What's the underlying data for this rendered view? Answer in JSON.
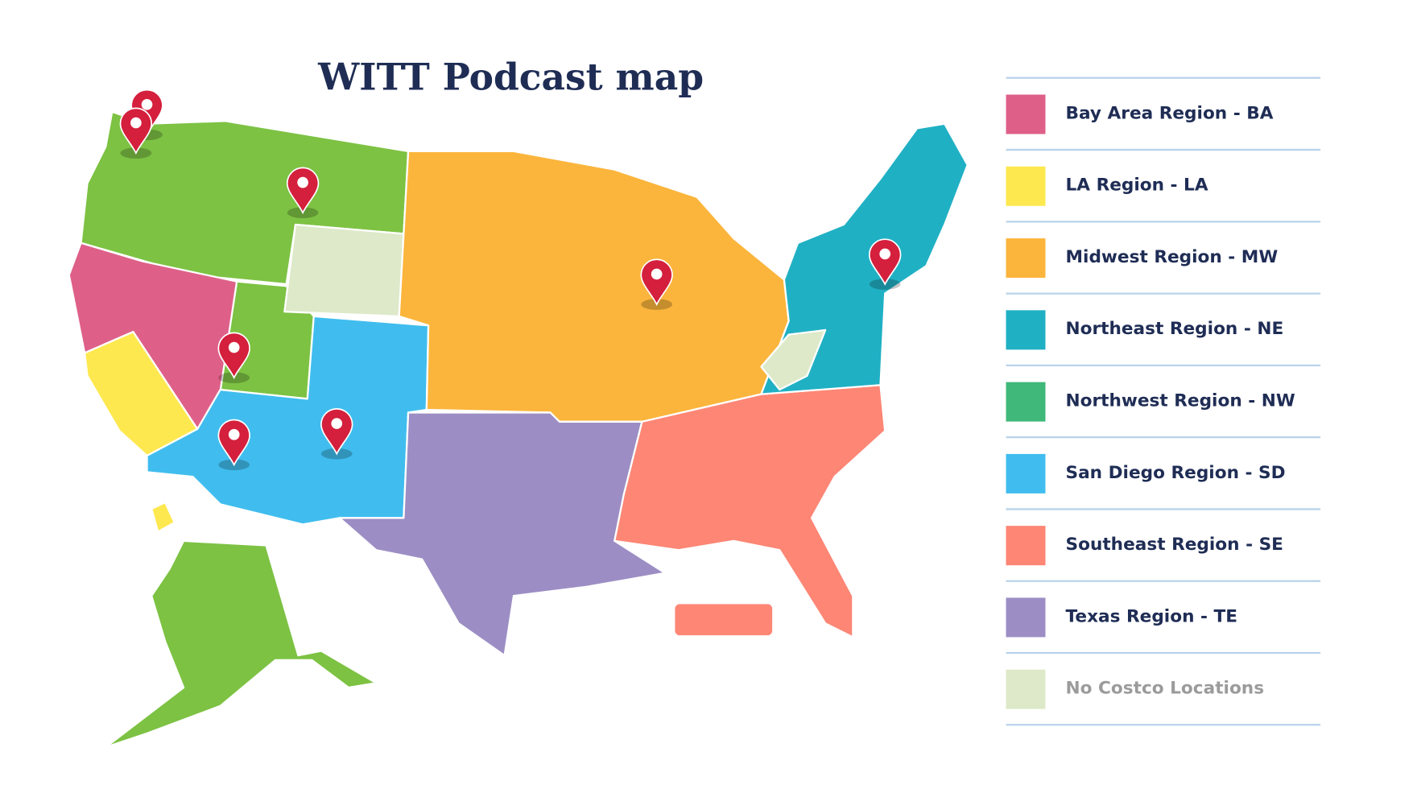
{
  "header": {
    "title": "WITT Podcast map"
  },
  "legend": {
    "items": [
      {
        "label": "Bay Area Region - BA",
        "color": "#de6089"
      },
      {
        "label": "LA Region - LA",
        "color": "#fde84f"
      },
      {
        "label": "Midwest Region - MW",
        "color": "#fbb53c"
      },
      {
        "label": "Northeast Region - NE",
        "color": "#20b0c4"
      },
      {
        "label": "Northwest Region - NW",
        "color": "#3fb879"
      },
      {
        "label": "San Diego Region - SD",
        "color": "#40bdee"
      },
      {
        "label": "Southeast Region - SE",
        "color": "#fd8675"
      },
      {
        "label": "Texas Region - TE",
        "color": "#9c8ec4"
      },
      {
        "label": "No Costco Locations",
        "color": "#dde9c8"
      }
    ]
  }
}
